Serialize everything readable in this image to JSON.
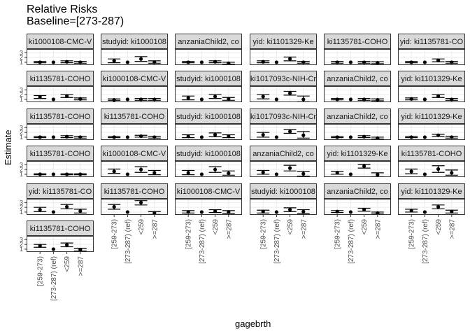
{
  "chart_data": {
    "type": "scatter",
    "title": "Relative Risks",
    "subtitle": "Baseline=[273-287)",
    "xlabel": "gagebrth",
    "ylabel": "Estimate",
    "categories": [
      "[259-273)",
      "[273-287) (ref)",
      "<259",
      ">=287"
    ],
    "y_ticks": [
      "1",
      "2",
      "3"
    ],
    "ylim": [
      0.4,
      3.8
    ],
    "grid": true,
    "panels": [
      {
        "label": "ki1000108-CMC-V",
        "values": [
          1.0,
          1.0,
          1.1,
          1.0
        ],
        "lower": [
          0.9,
          1.0,
          0.9,
          0.8
        ],
        "upper": [
          1.2,
          1.0,
          1.3,
          1.2
        ]
      },
      {
        "label": "studyid: ki1000108",
        "values": [
          1.3,
          1.0,
          1.7,
          1.0
        ],
        "lower": [
          0.9,
          1.0,
          1.2,
          0.8
        ],
        "upper": [
          1.7,
          1.0,
          2.2,
          1.3
        ]
      },
      {
        "label": "anzaniaChild2, co",
        "values": [
          1.0,
          1.0,
          1.1,
          0.8
        ],
        "lower": [
          0.9,
          1.0,
          0.9,
          0.6
        ],
        "upper": [
          1.2,
          1.0,
          1.3,
          1.0
        ]
      },
      {
        "label": "yid: ki1101329-Ke",
        "values": [
          1.1,
          1.0,
          1.7,
          1.0
        ],
        "lower": [
          0.9,
          1.0,
          1.3,
          0.8
        ],
        "upper": [
          1.3,
          1.0,
          2.1,
          1.2
        ]
      },
      {
        "label": "ki1135781-COHO",
        "values": [
          1.0,
          1.0,
          1.0,
          0.9
        ],
        "lower": [
          0.8,
          1.0,
          0.8,
          0.7
        ],
        "upper": [
          1.2,
          1.0,
          1.2,
          1.1
        ]
      },
      {
        "label": "yid: ki1135781-CO",
        "values": [
          1.0,
          1.0,
          1.4,
          1.0
        ],
        "lower": [
          0.9,
          1.0,
          1.1,
          0.8
        ],
        "upper": [
          1.2,
          1.0,
          1.7,
          1.2
        ]
      },
      {
        "label": "ki1135781-COHO",
        "values": [
          1.5,
          1.0,
          1.7,
          1.1
        ],
        "lower": [
          1.2,
          1.0,
          1.4,
          0.9
        ],
        "upper": [
          1.8,
          1.0,
          2.0,
          1.3
        ]
      },
      {
        "label": "ki1000108-CMC-V",
        "values": [
          0.9,
          1.0,
          1.0,
          1.0
        ],
        "lower": [
          0.8,
          1.0,
          0.8,
          0.8
        ],
        "upper": [
          1.1,
          1.0,
          1.2,
          1.2
        ]
      },
      {
        "label": "studyid: ki1000108",
        "values": [
          1.3,
          1.0,
          1.6,
          1.1
        ],
        "lower": [
          0.9,
          1.0,
          1.2,
          0.8
        ],
        "upper": [
          1.7,
          1.0,
          2.0,
          1.4
        ]
      },
      {
        "label": "ki1017093c-NIH-Cr",
        "values": [
          1.6,
          1.0,
          2.3,
          1.0
        ],
        "lower": [
          1.1,
          1.0,
          1.9,
          0.5
        ],
        "upper": [
          2.0,
          1.0,
          2.7,
          1.7
        ]
      },
      {
        "label": "anzaniaChild2, co",
        "values": [
          1.0,
          1.0,
          1.0,
          0.9
        ],
        "lower": [
          0.9,
          1.0,
          0.8,
          0.7
        ],
        "upper": [
          1.2,
          1.0,
          1.2,
          1.1
        ]
      },
      {
        "label": "yid: ki1101329-Ke",
        "values": [
          1.1,
          1.0,
          1.7,
          1.0
        ],
        "lower": [
          0.9,
          1.0,
          1.4,
          0.8
        ],
        "upper": [
          1.3,
          1.0,
          2.0,
          1.2
        ]
      },
      {
        "label": "ki1135781-COHO",
        "values": [
          1.0,
          1.0,
          1.1,
          1.0
        ],
        "lower": [
          0.9,
          1.0,
          0.9,
          0.8
        ],
        "upper": [
          1.2,
          1.0,
          1.3,
          1.2
        ]
      },
      {
        "label": "ki1135781-COHO",
        "values": [
          1.0,
          1.0,
          1.2,
          1.0
        ],
        "lower": [
          0.9,
          1.0,
          1.0,
          0.8
        ],
        "upper": [
          1.2,
          1.0,
          1.4,
          1.2
        ]
      },
      {
        "label": "studyid: ki1000108",
        "values": [
          1.2,
          1.0,
          1.5,
          1.2
        ],
        "lower": [
          0.9,
          1.0,
          1.1,
          0.9
        ],
        "upper": [
          1.5,
          1.0,
          1.9,
          1.5
        ]
      },
      {
        "label": "ki1017093c-NIH-Cr",
        "values": [
          1.5,
          1.0,
          2.2,
          1.4
        ],
        "lower": [
          1.0,
          1.0,
          1.8,
          0.8
        ],
        "upper": [
          2.0,
          1.0,
          2.6,
          2.2
        ]
      },
      {
        "label": "anzaniaChild2, co",
        "values": [
          1.0,
          1.0,
          1.1,
          0.8
        ],
        "lower": [
          0.9,
          1.0,
          0.9,
          0.6
        ],
        "upper": [
          1.2,
          1.0,
          1.3,
          1.0
        ]
      },
      {
        "label": "yid: ki1101329-Ke",
        "values": [
          1.0,
          1.0,
          1.4,
          1.0
        ],
        "lower": [
          0.9,
          1.0,
          1.2,
          0.8
        ],
        "upper": [
          1.2,
          1.0,
          1.6,
          1.2
        ]
      },
      {
        "label": "ki1135781-COHO",
        "values": [
          1.0,
          1.0,
          1.0,
          1.0
        ],
        "lower": [
          0.9,
          1.0,
          0.9,
          0.9
        ],
        "upper": [
          1.1,
          1.0,
          1.1,
          1.1
        ]
      },
      {
        "label": "ki1000108-CMC-V",
        "values": [
          1.6,
          1.0,
          2.0,
          1.3
        ],
        "lower": [
          1.2,
          1.0,
          1.4,
          0.9
        ],
        "upper": [
          2.1,
          1.0,
          2.6,
          1.8
        ]
      },
      {
        "label": "studyid: ki1000108",
        "values": [
          1.3,
          1.0,
          2.0,
          1.2
        ],
        "lower": [
          0.9,
          1.0,
          1.4,
          0.8
        ],
        "upper": [
          1.8,
          1.0,
          2.6,
          1.7
        ]
      },
      {
        "label": "anzaniaChild2, co",
        "values": [
          1.4,
          1.0,
          2.3,
          1.1
        ],
        "lower": [
          1.0,
          1.0,
          1.7,
          0.6
        ],
        "upper": [
          1.8,
          1.0,
          2.9,
          1.6
        ]
      },
      {
        "label": "yid: ki1101329-Ke",
        "values": [
          1.3,
          1.0,
          2.7,
          0.9
        ],
        "lower": [
          1.0,
          1.0,
          2.3,
          0.5
        ],
        "upper": [
          1.6,
          1.0,
          3.1,
          1.3
        ]
      },
      {
        "label": "ki1135781-COHO",
        "values": [
          1.6,
          1.0,
          2.1,
          1.3
        ],
        "lower": [
          1.1,
          1.0,
          1.4,
          0.8
        ],
        "upper": [
          2.1,
          1.0,
          2.8,
          1.9
        ]
      },
      {
        "label": "yid: ki1135781-CO",
        "values": [
          1.5,
          1.0,
          2.1,
          1.2
        ],
        "lower": [
          1.1,
          1.0,
          1.7,
          0.8
        ],
        "upper": [
          2.0,
          1.0,
          2.6,
          1.6
        ]
      },
      {
        "label": "ki1135781-COHO",
        "values": [
          2.1,
          1.0,
          3.0,
          0.8
        ],
        "lower": [
          1.6,
          1.0,
          2.5,
          0.5
        ],
        "upper": [
          2.6,
          1.0,
          3.4,
          1.1
        ]
      },
      {
        "label": "ki1000108-CMC-V",
        "values": [
          1.0,
          1.0,
          1.2,
          1.0
        ],
        "lower": [
          0.8,
          1.0,
          0.9,
          0.7
        ],
        "upper": [
          1.3,
          1.0,
          1.5,
          1.3
        ]
      },
      {
        "label": "studyid: ki1000108",
        "values": [
          1.1,
          1.0,
          1.5,
          1.1
        ],
        "lower": [
          0.8,
          1.0,
          1.1,
          0.7
        ],
        "upper": [
          1.4,
          1.0,
          1.9,
          1.5
        ]
      },
      {
        "label": "anzaniaChild2, co",
        "values": [
          1.1,
          1.0,
          1.5,
          0.8
        ],
        "lower": [
          0.9,
          1.0,
          1.2,
          0.6
        ],
        "upper": [
          1.3,
          1.0,
          1.8,
          1.0
        ]
      },
      {
        "label": "yid: ki1101329-Ke",
        "values": [
          1.3,
          1.0,
          2.1,
          1.1
        ],
        "lower": [
          1.0,
          1.0,
          1.7,
          0.8
        ],
        "upper": [
          1.6,
          1.0,
          2.5,
          1.4
        ]
      },
      {
        "label": "ki1135781-COHO",
        "values": [
          1.7,
          1.0,
          1.9,
          0.9
        ],
        "lower": [
          1.4,
          1.0,
          1.5,
          0.6
        ],
        "upper": [
          2.0,
          1.0,
          2.3,
          1.2
        ]
      }
    ]
  }
}
